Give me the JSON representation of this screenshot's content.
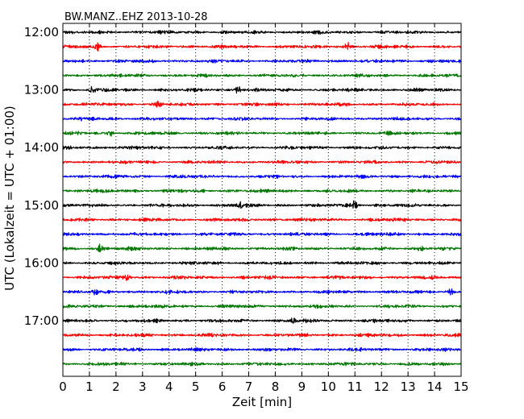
{
  "chart_data": {
    "type": "line",
    "title": "BW.MANZ..EHZ 2013-10-28",
    "xlabel": "Zeit  [min]",
    "ylabel": "UTC (Lokalzeit = UTC + 01:00)",
    "xlim": [
      0,
      15
    ],
    "x_ticks": [
      "0",
      "1",
      "2",
      "3",
      "4",
      "5",
      "6",
      "7",
      "8",
      "9",
      "10",
      "11",
      "12",
      "13",
      "14",
      "15"
    ],
    "y_ticks": [
      {
        "label": "12:00",
        "row": 0
      },
      {
        "label": "13:00",
        "row": 4
      },
      {
        "label": "14:00",
        "row": 8
      },
      {
        "label": "15:00",
        "row": 12
      },
      {
        "label": "16:00",
        "row": 16
      },
      {
        "label": "17:00",
        "row": 20
      }
    ],
    "row_minutes": 15,
    "row_count": 24,
    "row_colors": [
      "#000000",
      "#ff0000",
      "#0000ff",
      "#007700"
    ],
    "grid": "vertical dotted",
    "events": [
      {
        "row": 1,
        "minute": 10.7,
        "amplitude": 2.2
      },
      {
        "row": 1,
        "minute": 1.3,
        "amplitude": 1.6
      },
      {
        "row": 4,
        "minute": 6.6,
        "amplitude": 1.8
      },
      {
        "row": 4,
        "minute": 1.1,
        "amplitude": 1.4
      },
      {
        "row": 5,
        "minute": 3.6,
        "amplitude": 1.7
      },
      {
        "row": 7,
        "minute": 1.8,
        "amplitude": 1.5
      },
      {
        "row": 12,
        "minute": 11.0,
        "amplitude": 2.0
      },
      {
        "row": 12,
        "minute": 6.7,
        "amplitude": 1.5
      },
      {
        "row": 15,
        "minute": 1.4,
        "amplitude": 1.6
      },
      {
        "row": 15,
        "minute": 13.5,
        "amplitude": 1.4
      },
      {
        "row": 17,
        "minute": 2.4,
        "amplitude": 1.5
      },
      {
        "row": 18,
        "minute": 1.2,
        "amplitude": 1.4
      },
      {
        "row": 18,
        "minute": 14.6,
        "amplitude": 1.5
      },
      {
        "row": 20,
        "minute": 8.7,
        "amplitude": 1.4
      }
    ]
  }
}
